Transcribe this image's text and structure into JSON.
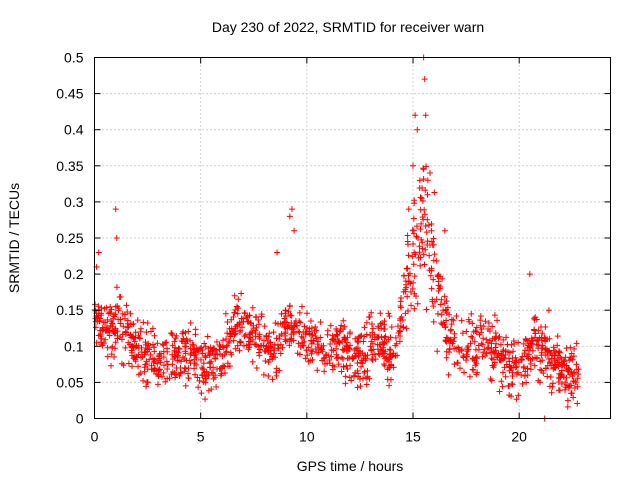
{
  "chart_data": {
    "type": "scatter",
    "title": "Day 230 of 2022, SRMTID for receiver warn",
    "xlabel": "GPS time / hours",
    "ylabel": "SRMTID / TECUs",
    "xlim": [
      0,
      24.3
    ],
    "ylim": [
      0,
      0.5
    ],
    "xticks": [
      0,
      5,
      10,
      15,
      20
    ],
    "xtick_labels": [
      "0",
      "5",
      "10",
      "15",
      "20"
    ],
    "yticks": [
      0,
      0.05,
      0.1,
      0.15,
      0.2,
      0.25,
      0.3,
      0.35,
      0.4,
      0.45,
      0.5
    ],
    "ytick_labels": [
      "0",
      "0.05",
      "0.1",
      "0.15",
      "0.2",
      "0.25",
      "0.3",
      "0.35",
      "0.4",
      "0.45",
      "0.5"
    ],
    "grid": true,
    "marker": "plus",
    "color": "#ff0000",
    "trend": {
      "x": [
        0.0,
        0.2,
        0.6,
        1.0,
        1.5,
        2.0,
        2.5,
        3.0,
        3.5,
        4.0,
        4.5,
        5.0,
        5.5,
        6.0,
        6.5,
        7.0,
        7.5,
        8.0,
        8.5,
        9.0,
        9.5,
        10.0,
        10.5,
        11.0,
        11.5,
        12.0,
        12.5,
        13.0,
        13.5,
        14.0,
        14.5,
        14.8,
        15.0,
        15.3,
        15.5,
        15.8,
        16.0,
        16.3,
        16.6,
        17.0,
        17.5,
        18.0,
        18.5,
        19.0,
        19.5,
        20.0,
        20.5,
        21.0,
        21.5,
        22.0,
        22.5,
        22.8
      ],
      "y": [
        0.15,
        0.14,
        0.11,
        0.13,
        0.12,
        0.1,
        0.085,
        0.08,
        0.085,
        0.09,
        0.09,
        0.075,
        0.07,
        0.085,
        0.12,
        0.13,
        0.115,
        0.1,
        0.09,
        0.13,
        0.12,
        0.11,
        0.1,
        0.09,
        0.1,
        0.085,
        0.08,
        0.1,
        0.11,
        0.09,
        0.15,
        0.2,
        0.22,
        0.26,
        0.28,
        0.25,
        0.2,
        0.16,
        0.12,
        0.1,
        0.1,
        0.1,
        0.11,
        0.09,
        0.075,
        0.07,
        0.1,
        0.1,
        0.08,
        0.065,
        0.06,
        0.055
      ]
    },
    "spikes": [
      {
        "x": 0.1,
        "y": 0.21
      },
      {
        "x": 0.2,
        "y": 0.23
      },
      {
        "x": 1.0,
        "y": 0.29
      },
      {
        "x": 1.05,
        "y": 0.25
      },
      {
        "x": 6.6,
        "y": 0.17
      },
      {
        "x": 8.6,
        "y": 0.23
      },
      {
        "x": 9.2,
        "y": 0.28
      },
      {
        "x": 9.3,
        "y": 0.29
      },
      {
        "x": 9.4,
        "y": 0.26
      },
      {
        "x": 14.8,
        "y": 0.29
      },
      {
        "x": 15.0,
        "y": 0.35
      },
      {
        "x": 15.1,
        "y": 0.42
      },
      {
        "x": 15.2,
        "y": 0.4
      },
      {
        "x": 15.5,
        "y": 0.5
      },
      {
        "x": 15.55,
        "y": 0.47
      },
      {
        "x": 15.6,
        "y": 0.42
      },
      {
        "x": 15.8,
        "y": 0.34
      },
      {
        "x": 15.7,
        "y": 0.33
      },
      {
        "x": 16.5,
        "y": 0.26
      },
      {
        "x": 20.5,
        "y": 0.2
      },
      {
        "x": 21.4,
        "y": 0.15
      },
      {
        "x": 21.2,
        "y": 0.0
      }
    ],
    "noise_amplitude": 0.028,
    "n_points": 1500
  }
}
